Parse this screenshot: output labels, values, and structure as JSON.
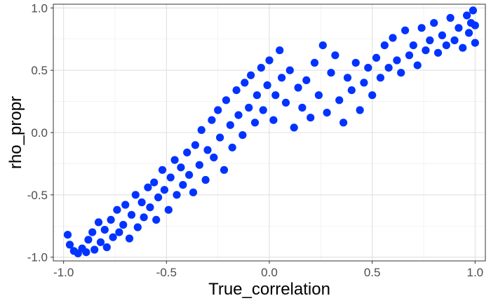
{
  "chart_data": {
    "type": "scatter",
    "title": "",
    "xlabel": "True_correlation",
    "ylabel": "rho_propr",
    "xlim": [
      -1.05,
      1.05
    ],
    "ylim": [
      -1.03,
      1.03
    ],
    "x_ticks": [
      -1.0,
      -0.5,
      0.0,
      0.5,
      1.0
    ],
    "x_tick_labels": [
      "-1.0",
      "-0.5",
      "0.0",
      "0.5",
      "1.0"
    ],
    "y_ticks": [
      -1.0,
      -0.5,
      0.0,
      0.5,
      1.0
    ],
    "y_tick_labels": [
      "-1.0",
      "-0.5",
      "0.0",
      "0.5",
      "1.0"
    ],
    "grid": true,
    "legend": "none",
    "point_color": "#0033FF",
    "series": [
      {
        "points": [
          [
            -0.98,
            -0.82
          ],
          [
            -0.97,
            -0.9
          ],
          [
            -0.95,
            -0.95
          ],
          [
            -0.93,
            -0.97
          ],
          [
            -0.91,
            -0.93
          ],
          [
            -0.89,
            -0.96
          ],
          [
            -0.88,
            -0.86
          ],
          [
            -0.86,
            -0.8
          ],
          [
            -0.85,
            -0.94
          ],
          [
            -0.83,
            -0.72
          ],
          [
            -0.82,
            -0.88
          ],
          [
            -0.8,
            -0.78
          ],
          [
            -0.79,
            -0.92
          ],
          [
            -0.77,
            -0.7
          ],
          [
            -0.76,
            -0.84
          ],
          [
            -0.74,
            -0.62
          ],
          [
            -0.73,
            -0.8
          ],
          [
            -0.71,
            -0.74
          ],
          [
            -0.7,
            -0.58
          ],
          [
            -0.68,
            -0.85
          ],
          [
            -0.67,
            -0.66
          ],
          [
            -0.65,
            -0.5
          ],
          [
            -0.64,
            -0.76
          ],
          [
            -0.62,
            -0.56
          ],
          [
            -0.61,
            -0.68
          ],
          [
            -0.59,
            -0.44
          ],
          [
            -0.58,
            -0.6
          ],
          [
            -0.56,
            -0.4
          ],
          [
            -0.55,
            -0.7
          ],
          [
            -0.54,
            -0.52
          ],
          [
            -0.52,
            -0.3
          ],
          [
            -0.51,
            -0.46
          ],
          [
            -0.49,
            -0.62
          ],
          [
            -0.48,
            -0.36
          ],
          [
            -0.46,
            -0.22
          ],
          [
            -0.45,
            -0.5
          ],
          [
            -0.43,
            -0.28
          ],
          [
            -0.42,
            -0.42
          ],
          [
            -0.4,
            -0.16
          ],
          [
            -0.39,
            -0.34
          ],
          [
            -0.37,
            -0.48
          ],
          [
            -0.36,
            -0.1
          ],
          [
            -0.34,
            -0.26
          ],
          [
            -0.33,
            0.02
          ],
          [
            -0.31,
            -0.38
          ],
          [
            -0.3,
            -0.14
          ],
          [
            -0.28,
            0.1
          ],
          [
            -0.27,
            -0.2
          ],
          [
            -0.25,
            0.18
          ],
          [
            -0.24,
            -0.04
          ],
          [
            -0.22,
            -0.3
          ],
          [
            -0.21,
            0.26
          ],
          [
            -0.19,
            0.06
          ],
          [
            -0.18,
            -0.12
          ],
          [
            -0.16,
            0.34
          ],
          [
            -0.15,
            0.14
          ],
          [
            -0.13,
            -0.02
          ],
          [
            -0.12,
            0.4
          ],
          [
            -0.1,
            0.2
          ],
          [
            -0.09,
            0.46
          ],
          [
            -0.07,
            0.08
          ],
          [
            -0.06,
            0.3
          ],
          [
            -0.04,
            0.52
          ],
          [
            -0.03,
            0.18
          ],
          [
            -0.01,
            0.38
          ],
          [
            0.0,
            0.58
          ],
          [
            0.02,
            0.1
          ],
          [
            0.03,
            0.3
          ],
          [
            0.05,
            0.66
          ],
          [
            0.06,
            0.44
          ],
          [
            0.08,
            0.24
          ],
          [
            0.1,
            0.5
          ],
          [
            0.12,
            0.04
          ],
          [
            0.14,
            0.36
          ],
          [
            0.16,
            0.2
          ],
          [
            0.18,
            0.42
          ],
          [
            0.2,
            0.12
          ],
          [
            0.22,
            0.56
          ],
          [
            0.24,
            0.3
          ],
          [
            0.26,
            0.7
          ],
          [
            0.28,
            0.16
          ],
          [
            0.3,
            0.48
          ],
          [
            0.32,
            0.62
          ],
          [
            0.34,
            0.26
          ],
          [
            0.36,
            0.08
          ],
          [
            0.38,
            0.44
          ],
          [
            0.4,
            0.34
          ],
          [
            0.42,
            0.56
          ],
          [
            0.44,
            0.18
          ],
          [
            0.46,
            0.4
          ],
          [
            0.48,
            0.52
          ],
          [
            0.5,
            0.3
          ],
          [
            0.52,
            0.6
          ],
          [
            0.54,
            0.44
          ],
          [
            0.56,
            0.7
          ],
          [
            0.58,
            0.52
          ],
          [
            0.6,
            0.76
          ],
          [
            0.62,
            0.58
          ],
          [
            0.64,
            0.48
          ],
          [
            0.66,
            0.82
          ],
          [
            0.68,
            0.62
          ],
          [
            0.7,
            0.7
          ],
          [
            0.72,
            0.54
          ],
          [
            0.74,
            0.84
          ],
          [
            0.76,
            0.66
          ],
          [
            0.78,
            0.74
          ],
          [
            0.8,
            0.88
          ],
          [
            0.82,
            0.64
          ],
          [
            0.84,
            0.78
          ],
          [
            0.86,
            0.7
          ],
          [
            0.88,
            0.92
          ],
          [
            0.9,
            0.74
          ],
          [
            0.92,
            0.84
          ],
          [
            0.94,
            0.68
          ],
          [
            0.96,
            0.94
          ],
          [
            0.97,
            0.8
          ],
          [
            0.98,
            0.88
          ],
          [
            0.99,
            0.98
          ],
          [
            1.0,
            0.72
          ],
          [
            1.0,
            0.86
          ]
        ]
      }
    ]
  }
}
